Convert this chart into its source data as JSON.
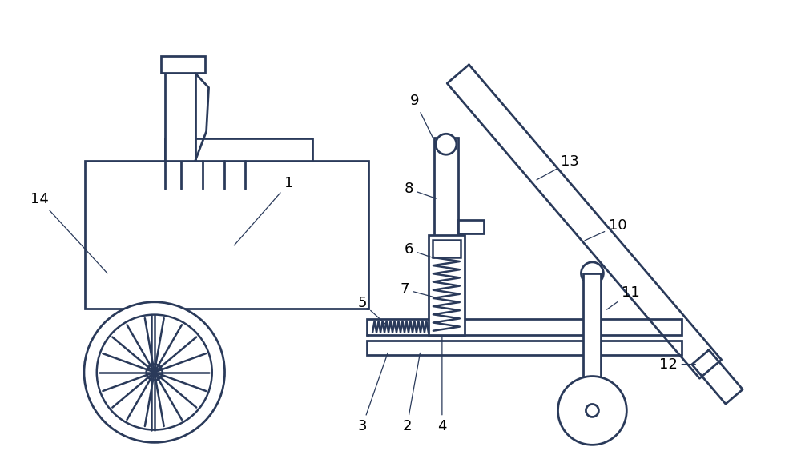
{
  "bg_color": "#ffffff",
  "line_color": "#2a3a5a",
  "line_width": 1.8,
  "figsize": [
    10.0,
    5.74
  ],
  "dpi": 100,
  "label_fontsize": 13
}
